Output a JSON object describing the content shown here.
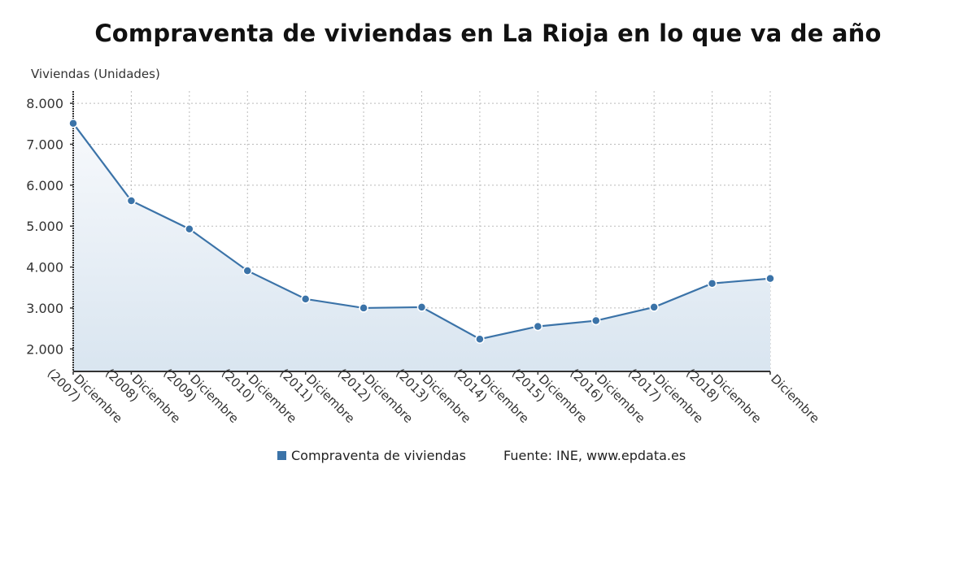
{
  "chart_data": {
    "type": "area",
    "title": "Compraventa de viviendas en La Rioja en lo que va de año",
    "ylabel": "Viviendas (Unidades)",
    "xlabel": "",
    "ylim": [
      1450,
      8300
    ],
    "yticks": [
      2000,
      3000,
      4000,
      5000,
      6000,
      7000,
      8000
    ],
    "ytick_labels": [
      "2.000",
      "3.000",
      "4.000",
      "5.000",
      "6.000",
      "7.000",
      "8.000"
    ],
    "grid": true,
    "categories": [
      [
        "Diciembre",
        "(2007)"
      ],
      [
        "Diciembre",
        "(2008)"
      ],
      [
        "Diciembre",
        "(2009)"
      ],
      [
        "Diciembre",
        "(2010)"
      ],
      [
        "Diciembre",
        "(2011)"
      ],
      [
        "Diciembre",
        "(2012)"
      ],
      [
        "Diciembre",
        "(2013)"
      ],
      [
        "Diciembre",
        "(2014)"
      ],
      [
        "Diciembre",
        "(2015)"
      ],
      [
        "Diciembre",
        "(2016)"
      ],
      [
        "Diciembre",
        "(2017)"
      ],
      [
        "Diciembre",
        "(2018)"
      ],
      [
        "Diciembre",
        ""
      ]
    ],
    "series": [
      {
        "name": "Compraventa de viviendas",
        "color": "#3b73a8",
        "values": [
          7510,
          5620,
          4930,
          3910,
          3220,
          3000,
          3020,
          2240,
          2550,
          2690,
          3020,
          3600,
          3720
        ]
      }
    ],
    "legend_position": "bottom-center",
    "source": "Fuente: INE, www.epdata.es"
  }
}
